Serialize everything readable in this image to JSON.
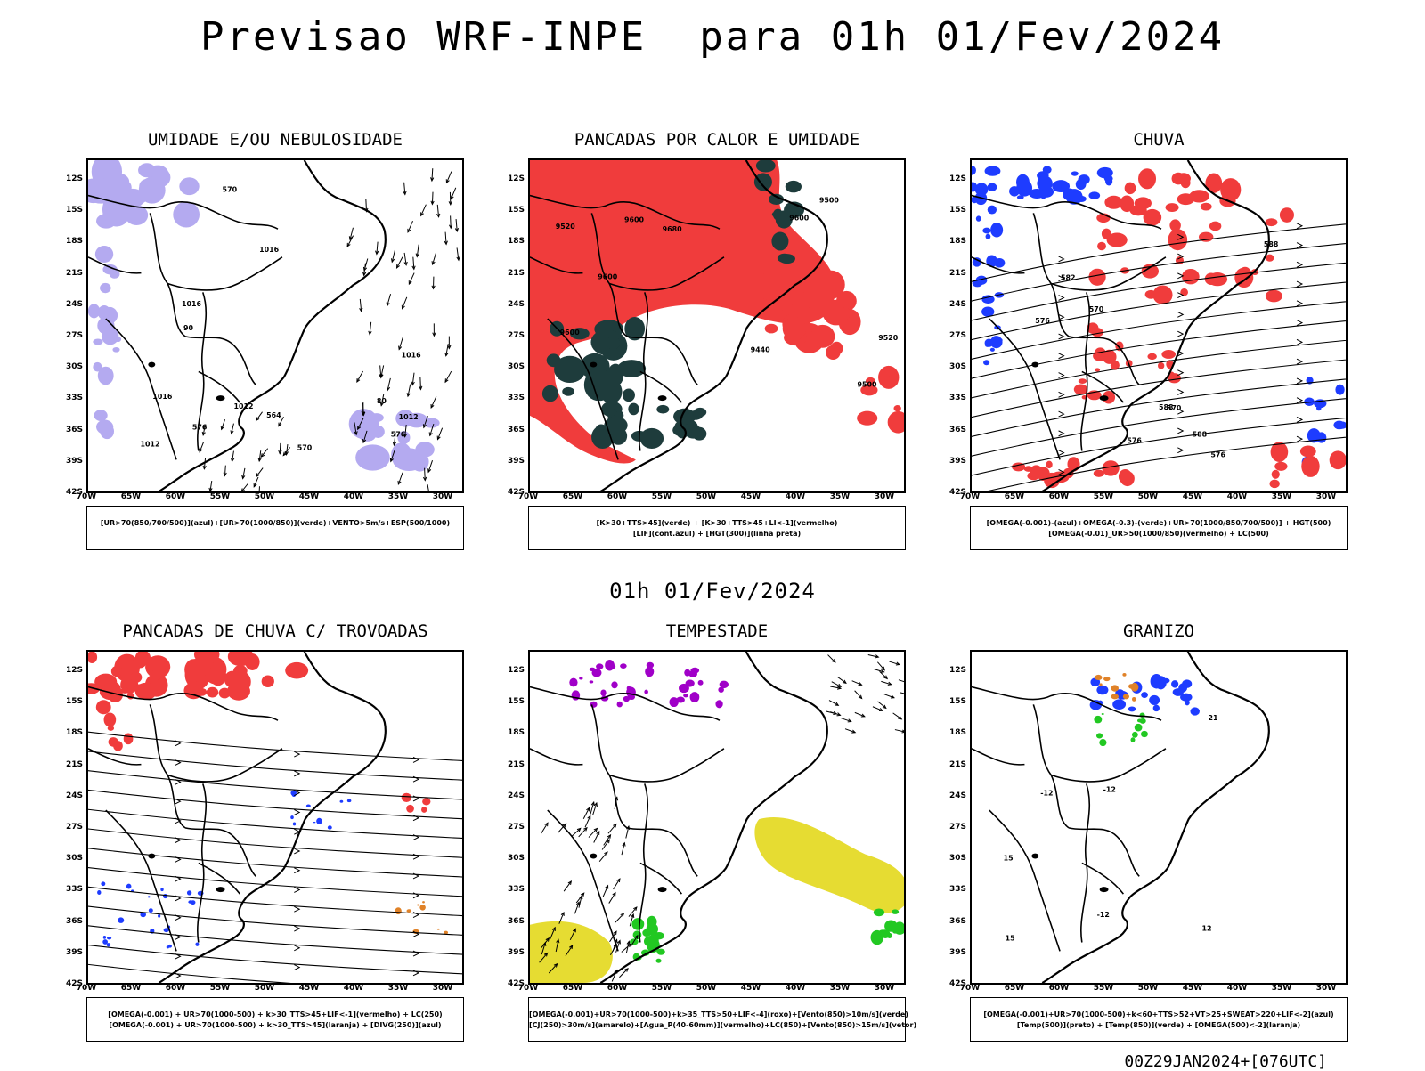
{
  "header": {
    "title": "Previsao WRF-INPE  para 01h 01/Fev/2024",
    "mid_time": "01h 01/Fev/2024",
    "run_info": "00Z29JAN2024+[076UTC]"
  },
  "axes": {
    "lat_labels": [
      "12S",
      "15S",
      "18S",
      "21S",
      "24S",
      "27S",
      "30S",
      "33S",
      "36S",
      "39S",
      "42S"
    ],
    "lon_labels": [
      "70W",
      "65W",
      "60W",
      "55W",
      "50W",
      "45W",
      "40W",
      "35W",
      "30W"
    ]
  },
  "colors": {
    "red": "#f03c3c",
    "blue": "#1e3cff",
    "green": "#22c822",
    "lavender": "#b4aaf0",
    "dark_teal": "#1e3c3c",
    "yellow": "#e6dc32",
    "purple": "#a000c8",
    "orange": "#e08228"
  },
  "panels": [
    {
      "title": "UMIDADE E/OU NEBULOSIDADE",
      "legend": [
        "[UR>70(850/700/500)](azul)+[UR>70(1000/850)](verde)+VENTO>5m/s+ESP(500/1000)"
      ]
    },
    {
      "title": "PANCADAS POR CALOR E UMIDADE",
      "legend": [
        "[K>30+TTS>45](verde) + [K>30+TTS>45+LI<-1](vermelho)",
        "[LIF](cont.azul) + [HGT(300)](linha preta)"
      ]
    },
    {
      "title": "CHUVA",
      "legend": [
        "[OMEGA(-0.001)-(azul)+OMEGA(-0.3)-(verde)+UR>70(1000/850/700/500)] + HGT(500)",
        "[OMEGA(-0.01)_UR>50(1000/850)(vermelho) + LC(500)"
      ]
    },
    {
      "title": "PANCADAS DE CHUVA C/ TROVOADAS",
      "legend": [
        "[OMEGA(-0.001) + UR>70(1000-500) + k>30_TTS>45+LIF<-1](vermelho) + LC(250)",
        "[OMEGA(-0.001) + UR>70(1000-500) + k>30_TTS>45](laranja) + [DIVG(250)](azul)"
      ]
    },
    {
      "title": "TEMPESTADE",
      "legend": [
        "[OMEGA(-0.001)+UR>70(1000-500)+k>35_TTS>50+LIF<-4](roxo)+[Vento(850)>10m/s](verde)",
        "[CJ(250)>30m/s](amarelo)+[Agua_P(40-60mm)](vermelho)+LC(850)+[Vento(850)>15m/s](vetor)"
      ]
    },
    {
      "title": "GRANIZO",
      "legend": [
        "[OMEGA(-0.001)+UR>70(1000-500)+k<60+TTS>52+VT>25+SWEAT>220+LIF<-2](azul)",
        "[Temp(500)](preto) + [Temp(850)](verde) + [OMEGA(500)<-2](laranja)"
      ]
    }
  ],
  "contour_labels": {
    "p1": [
      "1012",
      "1012",
      "1012",
      "1016",
      "1016",
      "1016",
      "1016",
      "570",
      "576",
      "564",
      "570",
      "576",
      "80",
      "90"
    ],
    "p2": [
      "9680",
      "9600",
      "9600",
      "9500",
      "9520",
      "9520",
      "9440",
      "9600",
      "9500",
      "9600"
    ],
    "p3": [
      "588",
      "588",
      "582",
      "576",
      "576",
      "570",
      "570",
      "576",
      "588"
    ],
    "p6": [
      "-12",
      "-12",
      "-12",
      "15",
      "15",
      "21",
      "12"
    ]
  }
}
